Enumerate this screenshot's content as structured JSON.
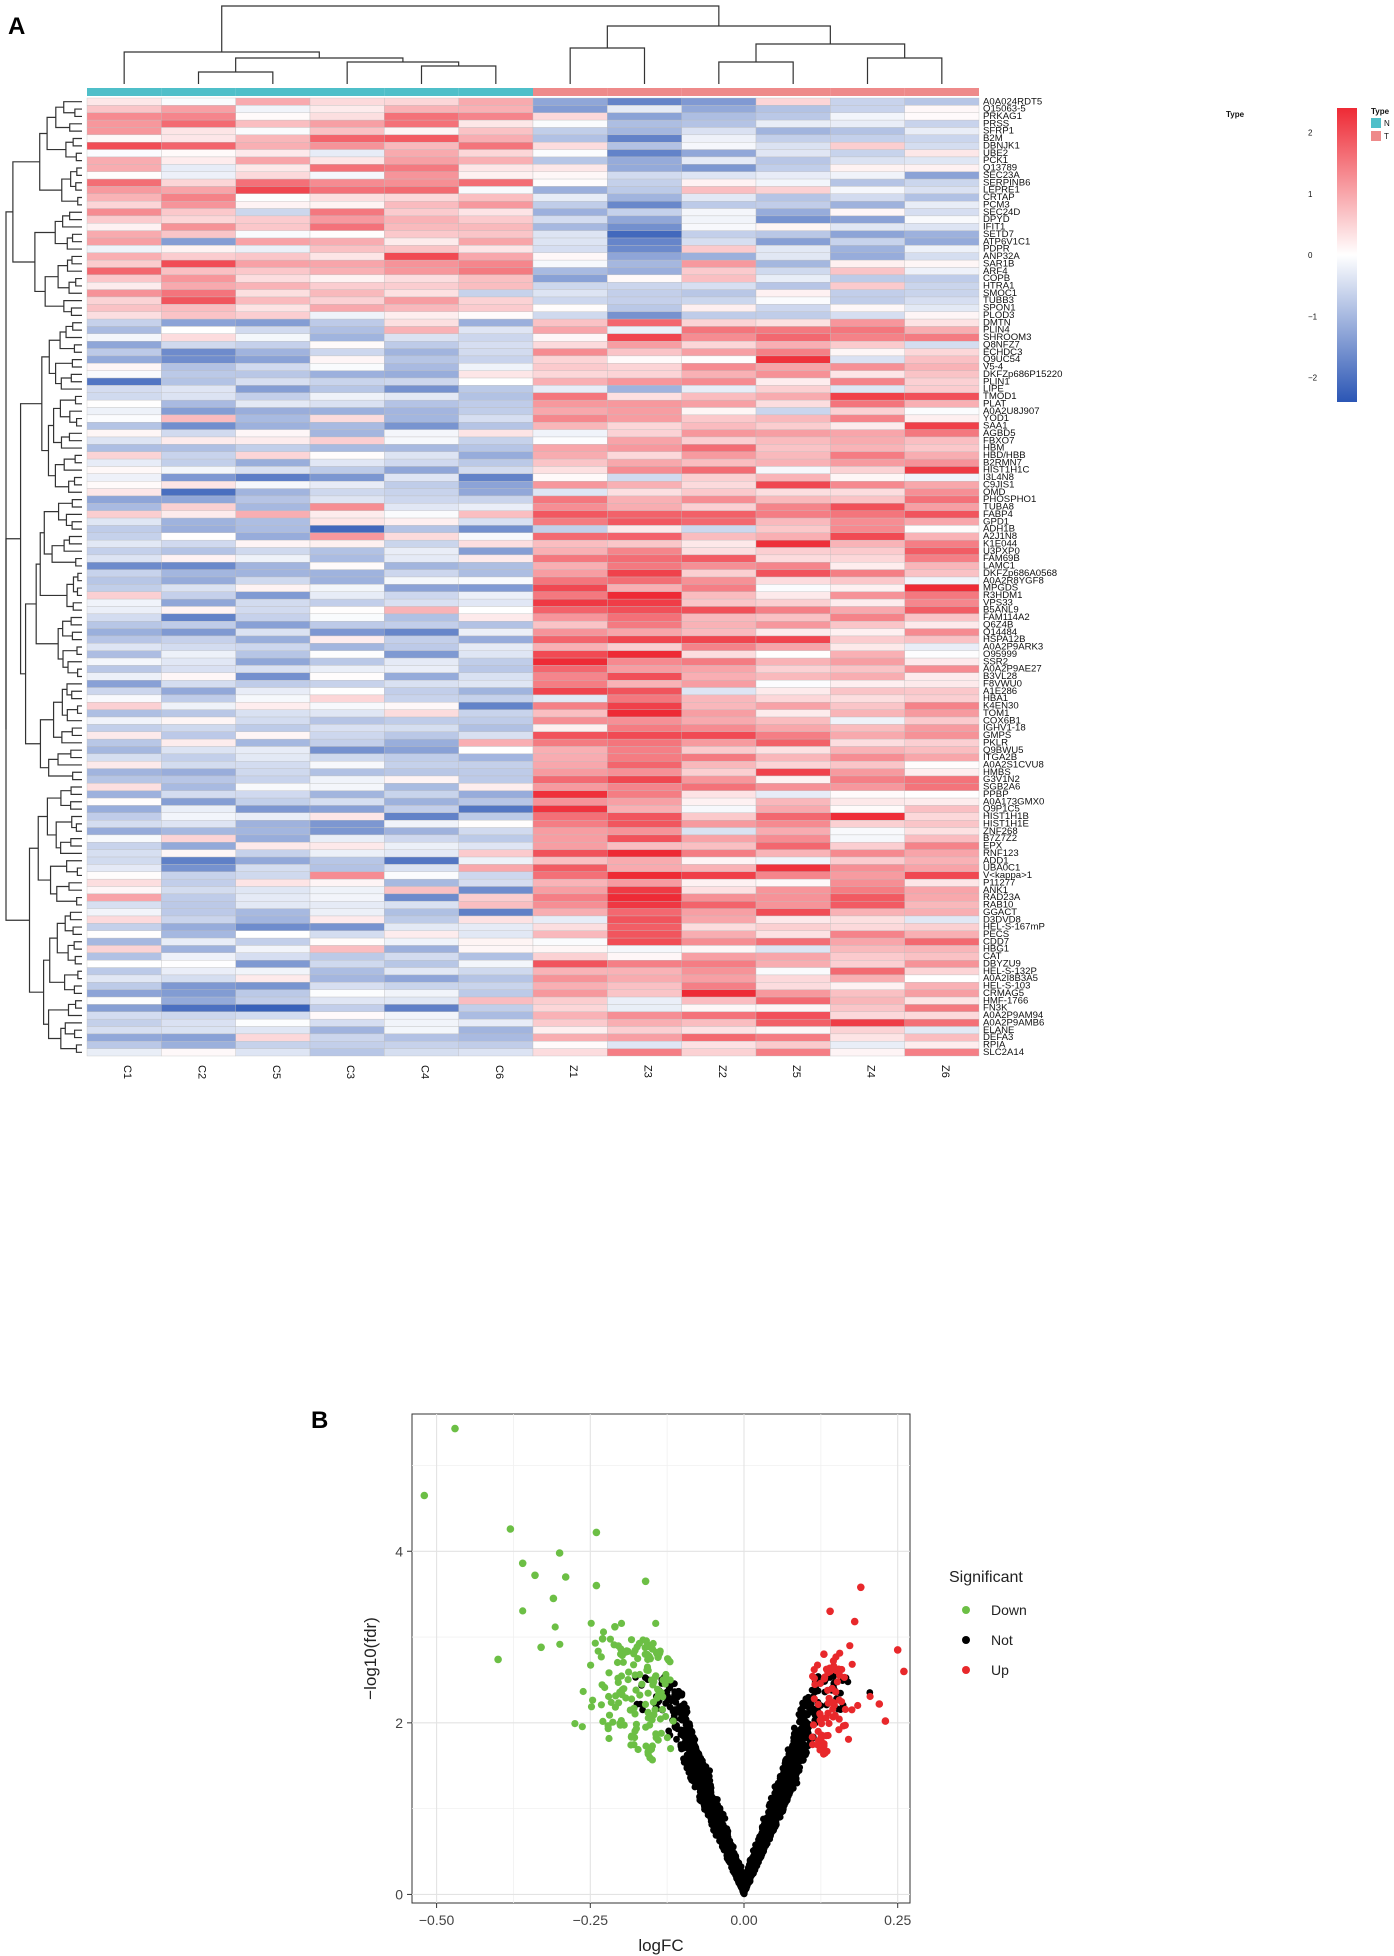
{
  "panels": {
    "a": "A",
    "b": "B"
  },
  "chart_data": [
    {
      "type": "heatmap",
      "panel": "A",
      "columns": [
        "C1",
        "C2",
        "C5",
        "C3",
        "C4",
        "C6",
        "Z1",
        "Z3",
        "Z2",
        "Z5",
        "Z4",
        "Z6"
      ],
      "column_groups": [
        "N",
        "N",
        "N",
        "N",
        "N",
        "N",
        "T",
        "T",
        "T",
        "T",
        "T",
        "T"
      ],
      "annotation_title": "Type",
      "annotation_legend": {
        "title": "Type",
        "levels": [
          "N",
          "T"
        ],
        "colors": [
          "#4fbfc9",
          "#ee8a8a"
        ]
      },
      "color_scale": {
        "ticks": [
          2,
          1,
          0,
          -1,
          -2
        ],
        "low": "#2b56b5",
        "mid": "#ffffff",
        "high": "#ee2a35"
      },
      "rows": [
        "A0A024RDT5",
        "Q15063-5",
        "PRKAG1",
        "PRSS",
        "SFRP1",
        "B2M",
        "DBNJK1",
        "UBE2",
        "PCK1",
        "Q13789",
        "SEC23A",
        "SERPINB6",
        "LEPRE1",
        "CRTAP",
        "PCM3",
        "SEC24D",
        "DPYD",
        "IFIT1",
        "SETD7",
        "ATP6V1C1",
        "PDPR",
        "ANP32A",
        "SAR1B",
        "ARF4",
        "COPB",
        "HTRA1",
        "SMOC1",
        "TUBB3",
        "SPON1",
        "PLOD3",
        "DMTN",
        "PLIN4",
        "SHROOM3",
        "Q8NFZ7",
        "ECHDC3",
        "Q9UC54",
        "V5-4",
        "DKFZp686P15220",
        "PLIN1",
        "LIPE",
        "TMOD1",
        "PLAT",
        "A0A2U8J907",
        "YOD1",
        "SAA1",
        "AGBD5",
        "FBXO7",
        "HBM",
        "HBD/HBB",
        "B2RMN7",
        "HIST1H1C",
        "I3L4N8",
        "C9JIS1",
        "OMD",
        "PHOSPHO1",
        "TUBA8",
        "FABP4",
        "GPD1",
        "ADH1B",
        "A2J1N8",
        "K1E044",
        "U3PXP0",
        "FAM69B",
        "LAMC1",
        "DKFZp686A0568",
        "A0A2R8YGF8",
        "MPGDS",
        "R3HDM1",
        "VPS33",
        "B5ANL9",
        "FAM114A2",
        "Q6Z4B",
        "Q14484",
        "HSPA12B",
        "A0A2P9ARK3",
        "O95999",
        "SSR2",
        "A0A2P9AE27",
        "B3VL28",
        "F8VWU0",
        "A1E286",
        "HBA1",
        "K4EN30",
        "TOM1",
        "COX6B1",
        "IGHV1-18",
        "GMPS",
        "PKLR",
        "Q9BWU5",
        "ITGA2B",
        "A0A2S1CVU8",
        "HMBS",
        "G3V1N2",
        "SGB2A6",
        "PPBP",
        "A0A173GMX0",
        "Q9P1C5",
        "HIST1H1B",
        "HIST1H1E",
        "ZNF268",
        "B7Z7Z2",
        "EPX",
        "RNF123",
        "ADD1",
        "UBA0C1",
        "V<kappa>1",
        "P11277",
        "ANK1",
        "RAD23A",
        "RAB10",
        "GGACT",
        "D3DVD8",
        "HEL-S-167mP",
        "PECS",
        "CDD7",
        "HBG1",
        "CAT",
        "DBYZU9",
        "HEL-S-132P",
        "A0A2I8B3A5",
        "HEL-S-103",
        "CRMAG5",
        "HMF-1766",
        "FN3K",
        "A0A2P9AM94",
        "A0A2P9AMB6",
        "ELANE",
        "DEFA3",
        "RPIA",
        "SLC2A14"
      ]
    },
    {
      "type": "scatter",
      "panel": "B",
      "title": "",
      "xlabel": "logFC",
      "ylabel": "−log10(fdr)",
      "xlim": [
        -0.54,
        0.27
      ],
      "ylim": [
        -0.1,
        5.6
      ],
      "x_ticks": [
        -0.5,
        -0.25,
        0,
        0.25
      ],
      "x_tick_labels": [
        "−0.50",
        "−0.25",
        "0.00",
        "0.25"
      ],
      "y_ticks": [
        0,
        2,
        4
      ],
      "y_tick_labels": [
        "0",
        "2",
        "4"
      ],
      "legend_title": "Significant",
      "series": [
        {
          "name": "Down",
          "color": "#6cbf45"
        },
        {
          "name": "Not",
          "color": "#000000"
        },
        {
          "name": "Up",
          "color": "#e8282b"
        }
      ],
      "highlight_points": {
        "Down": [
          [
            -0.47,
            5.43
          ],
          [
            -0.52,
            4.65
          ],
          [
            -0.38,
            4.26
          ],
          [
            -0.24,
            4.22
          ],
          [
            -0.36,
            3.86
          ],
          [
            -0.3,
            3.98
          ],
          [
            -0.29,
            3.7
          ],
          [
            -0.34,
            3.72
          ],
          [
            -0.24,
            3.6
          ],
          [
            -0.16,
            3.65
          ],
          [
            -0.31,
            3.45
          ],
          [
            -0.4,
            2.74
          ],
          [
            -0.33,
            2.88
          ],
          [
            -0.21,
            3.12
          ],
          [
            -0.23,
            2.98
          ]
        ],
        "Up": [
          [
            0.19,
            3.58
          ],
          [
            0.14,
            3.3
          ],
          [
            0.25,
            2.85
          ],
          [
            0.26,
            2.6
          ],
          [
            0.18,
            3.18
          ],
          [
            0.13,
            2.8
          ],
          [
            0.22,
            2.22
          ],
          [
            0.23,
            2.02
          ]
        ]
      }
    }
  ]
}
